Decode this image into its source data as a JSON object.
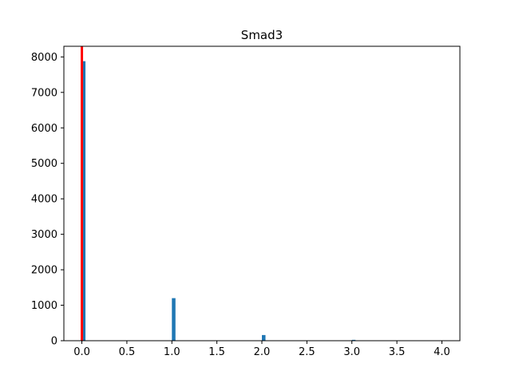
{
  "chart_data": {
    "type": "bar",
    "title": "Smad3",
    "xlabel": "",
    "ylabel": "",
    "xlim": [
      -0.2,
      4.2
    ],
    "ylim": [
      0,
      8300
    ],
    "xticks": [
      0.0,
      0.5,
      1.0,
      1.5,
      2.0,
      2.5,
      3.0,
      3.5,
      4.0
    ],
    "xtick_labels": [
      "0.0",
      "0.5",
      "1.0",
      "1.5",
      "2.0",
      "2.5",
      "3.0",
      "3.5",
      "4.0"
    ],
    "yticks": [
      0,
      1000,
      2000,
      3000,
      4000,
      5000,
      6000,
      7000,
      8000
    ],
    "ytick_labels": [
      "0",
      "1000",
      "2000",
      "3000",
      "4000",
      "5000",
      "6000",
      "7000",
      "8000"
    ],
    "bin_width": 0.04,
    "bins": [
      {
        "x": 0.0,
        "count": 7880
      },
      {
        "x": 1.0,
        "count": 1200
      },
      {
        "x": 2.0,
        "count": 160
      },
      {
        "x": 3.0,
        "count": 25
      }
    ],
    "vline": {
      "x": 0.0
    },
    "bar_color": "#1f77b4",
    "vline_color": "#ff0000",
    "grid": false
  }
}
